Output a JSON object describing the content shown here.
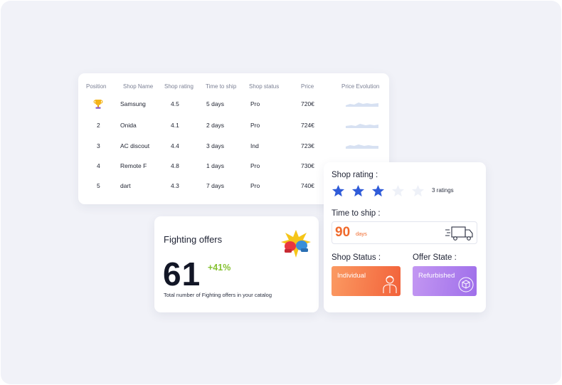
{
  "table": {
    "headers": {
      "position": "Position",
      "shop_name": "Shop Name",
      "shop_rating": "Shop rating",
      "time_to_ship": "Time to ship",
      "shop_status": "Shop status",
      "price": "Price",
      "price_evolution": "Price Evolution"
    },
    "rows": [
      {
        "position": "",
        "shop_name": "Samsung",
        "rating": "4.5",
        "time_to_ship": "5 days",
        "status": "Pro",
        "price": "720€"
      },
      {
        "position": "2",
        "shop_name": "Onida",
        "rating": "4.1",
        "time_to_ship": "2 days",
        "status": "Pro",
        "price": "724€"
      },
      {
        "position": "3",
        "shop_name": "AC discout",
        "rating": "4.4",
        "time_to_ship": "3 days",
        "status": "Ind",
        "price": "723€"
      },
      {
        "position": "4",
        "shop_name": "Remote F",
        "rating": "4.8",
        "time_to_ship": "1 days",
        "status": "Pro",
        "price": "730€"
      },
      {
        "position": "5",
        "shop_name": "dart",
        "rating": "4.3",
        "time_to_ship": "7 days",
        "status": "Pro",
        "price": "740€"
      }
    ],
    "first_row_icon": "trophy-icon",
    "sparkline_color": "#d7e1f2"
  },
  "fighting_offers": {
    "title": "Fighting offers",
    "count": "61",
    "growth": "+41%",
    "description": "Total number of Fighting offers in your catalog",
    "icon": "boxing-gloves-icon",
    "growth_color": "#86c232"
  },
  "shop_details": {
    "rating_label": "Shop rating :",
    "stars_filled": 3,
    "stars_total": 5,
    "ratings_count": "3 ratings",
    "star_color": "#2f5bd8",
    "star_empty_color": "#eef1f8",
    "ship_label": "Time to ship :",
    "ship_days": "90",
    "ship_unit": "days",
    "ship_color": "#f06a2c",
    "ship_icon": "delivery-truck-icon",
    "status_label": "Shop Status :",
    "status_value": "Individual",
    "status_icon": "person-icon",
    "offer_state_label": "Offer State :",
    "offer_state_value": "Refurbished",
    "offer_state_icon": "package-box-icon"
  }
}
